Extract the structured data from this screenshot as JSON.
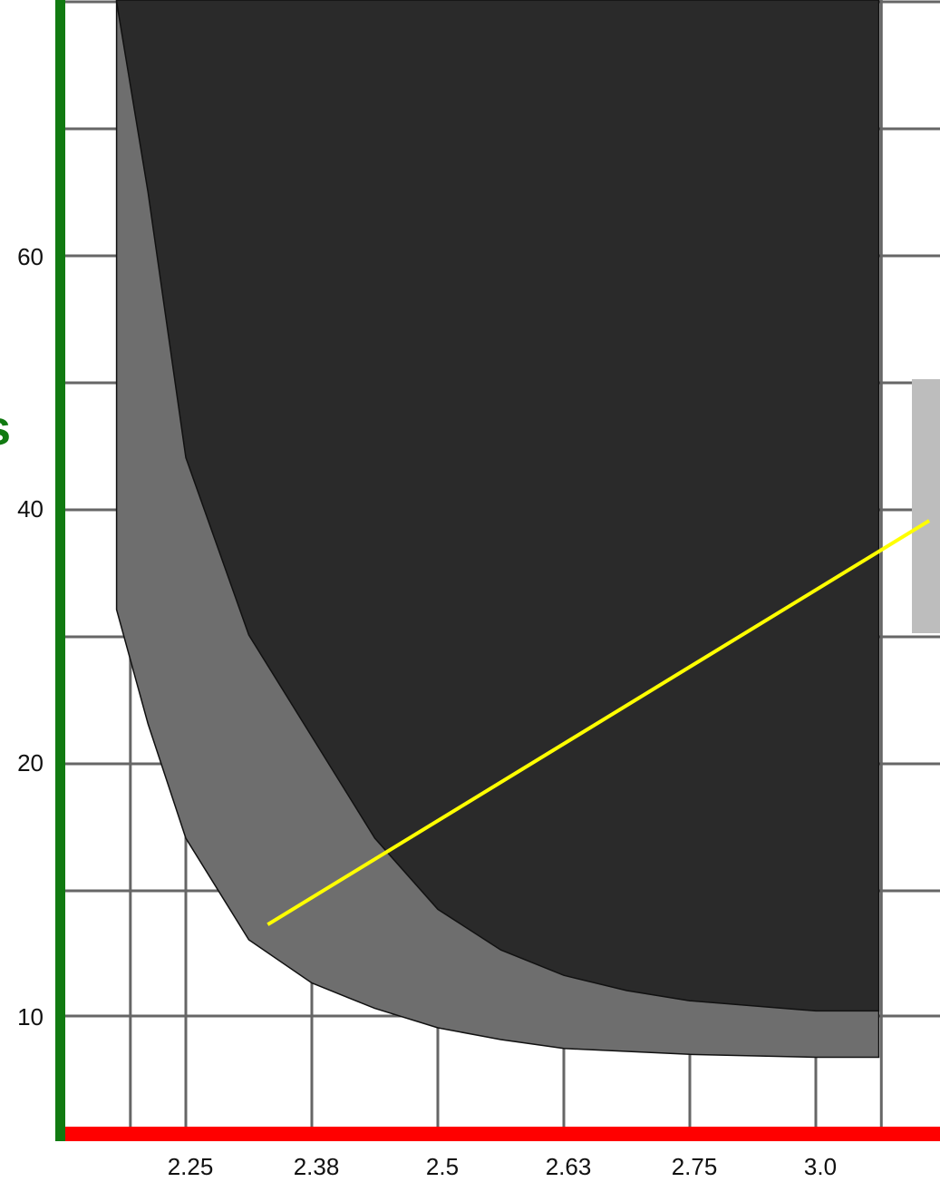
{
  "chart_data": {
    "type": "area",
    "title": "",
    "xlabel": "",
    "ylabel": "s",
    "x_ticks": [
      "2.25",
      "2.38",
      "2.5",
      "2.63",
      "2.75",
      "3.0"
    ],
    "y_ticks": [
      "10",
      "20",
      "40",
      "60"
    ],
    "grid": true,
    "legend": "none",
    "series": [
      {
        "role": "lower-band",
        "fill": "#6e6e6e",
        "points_x_index": [
          -0.55,
          -0.55,
          -0.3,
          0.0,
          0.5,
          1.0,
          1.5,
          2.0,
          2.5,
          3.0,
          4.0,
          5.0,
          5.5
        ],
        "points_y_value": [
          34,
          32,
          23,
          17,
          13,
          11.3,
          10.3,
          9.6,
          9.2,
          8.9,
          8.7,
          8.6,
          8.6
        ]
      },
      {
        "role": "upper-band",
        "fill": "#2a2a2a",
        "points_x_index": [
          -0.55,
          -0.3,
          0.0,
          0.5,
          1.0,
          1.5,
          2.0,
          2.5,
          3.0,
          3.5,
          4.0,
          5.0,
          5.5
        ],
        "points_y_value": [
          80,
          65,
          44,
          30,
          22,
          17,
          14.2,
          12.6,
          11.6,
          11.0,
          10.6,
          10.2,
          10.2
        ]
      }
    ],
    "trend_line": {
      "color": "#ffff00",
      "x_index": [
        0.65,
        5.9
      ],
      "y_value": [
        13.6,
        39.0
      ]
    },
    "axis_colors": {
      "y_axis": "#117a11",
      "x_axis": "#ff0000",
      "grid": "#666666",
      "side_box": "#bdbdbd"
    }
  }
}
